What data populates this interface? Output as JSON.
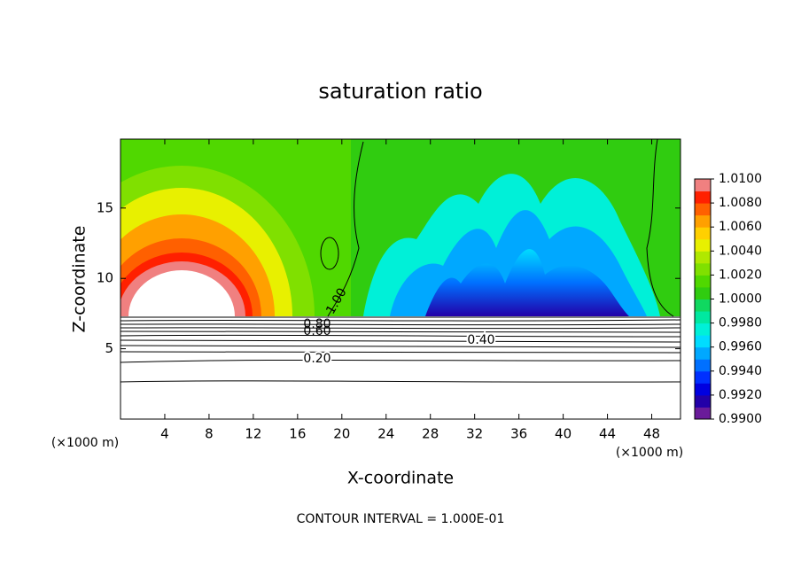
{
  "chart_data": {
    "type": "contour",
    "title": "saturation ratio",
    "x_label": "X-coordinate",
    "y_label": "Z-coordinate",
    "x_unit": "(×1000 m)",
    "y_unit": "(×1000 m)",
    "xlim": [
      0,
      50.6
    ],
    "xticks": [
      4,
      8,
      12,
      16,
      20,
      24,
      28,
      32,
      36,
      40,
      44,
      48
    ],
    "ylim": [
      0,
      19.9
    ],
    "yticks": [
      5,
      10,
      15
    ],
    "clim": [
      0.99,
      1.01
    ],
    "cticks": [
      {
        "value": 0.99,
        "label": "0.9900"
      },
      {
        "value": 0.992,
        "label": "0.9920"
      },
      {
        "value": 0.994,
        "label": "0.9940"
      },
      {
        "value": 0.996,
        "label": "0.9960"
      },
      {
        "value": 0.998,
        "label": "0.9980"
      },
      {
        "value": 1.0,
        "label": "1.0000"
      },
      {
        "value": 1.002,
        "label": "1.0020"
      },
      {
        "value": 1.004,
        "label": "1.0040"
      },
      {
        "value": 1.006,
        "label": "1.0060"
      },
      {
        "value": 1.008,
        "label": "1.0080"
      },
      {
        "value": 1.01,
        "label": "1.0100"
      }
    ],
    "colormap": [
      "#6a1b9a",
      "#2200a8",
      "#0000e0",
      "#0030ff",
      "#0070ff",
      "#00a8ff",
      "#00dcff",
      "#00f0d8",
      "#00e8a0",
      "#10d860",
      "#30cc10",
      "#50d800",
      "#80e000",
      "#b0e800",
      "#e8f000",
      "#ffd000",
      "#ffa000",
      "#ff6000",
      "#ff2000",
      "#f08080"
    ],
    "contour_levels": [
      {
        "value": 1.0,
        "label": "1.00"
      },
      {
        "value": 0.8,
        "label": "0.80"
      },
      {
        "value": 0.6,
        "label": "0.60"
      },
      {
        "value": 0.4,
        "label": "0.40"
      },
      {
        "value": 0.2,
        "label": "0.20"
      }
    ],
    "footnote": "CONTOUR INTERVAL = 1.000E-01"
  }
}
